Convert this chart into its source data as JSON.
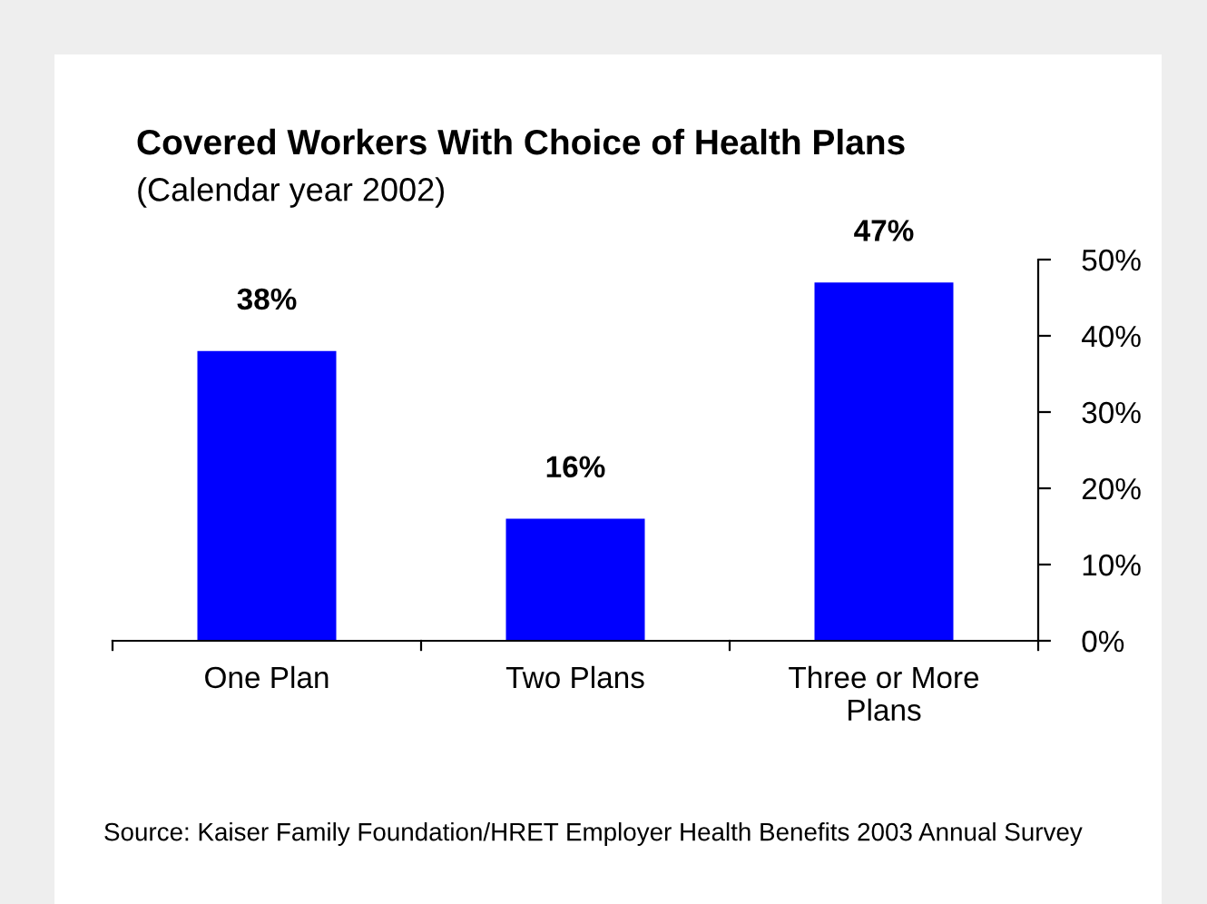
{
  "chart_data": {
    "type": "bar",
    "title": "Covered Workers With Choice of Health Plans",
    "subtitle": "(Calendar year 2002)",
    "categories": [
      "One Plan",
      "Two Plans",
      "Three or More Plans"
    ],
    "values": [
      38,
      16,
      47
    ],
    "color": "#0000ff",
    "value_labels": [
      "38%",
      "16%",
      "47%"
    ],
    "ylim": [
      0,
      50
    ],
    "yticks": [
      {
        "value": 0,
        "label": "0%"
      },
      {
        "value": 10,
        "label": "10%"
      },
      {
        "value": 20,
        "label": "20%"
      },
      {
        "value": 30,
        "label": "30%"
      },
      {
        "value": 40,
        "label": "40%"
      },
      {
        "value": 50,
        "label": "50%"
      }
    ],
    "grid": false,
    "legend": false,
    "annotations": [
      "Source: Kaiser Family Foundation/HRET Employer Health Benefits 2003 Annual Survey"
    ]
  }
}
